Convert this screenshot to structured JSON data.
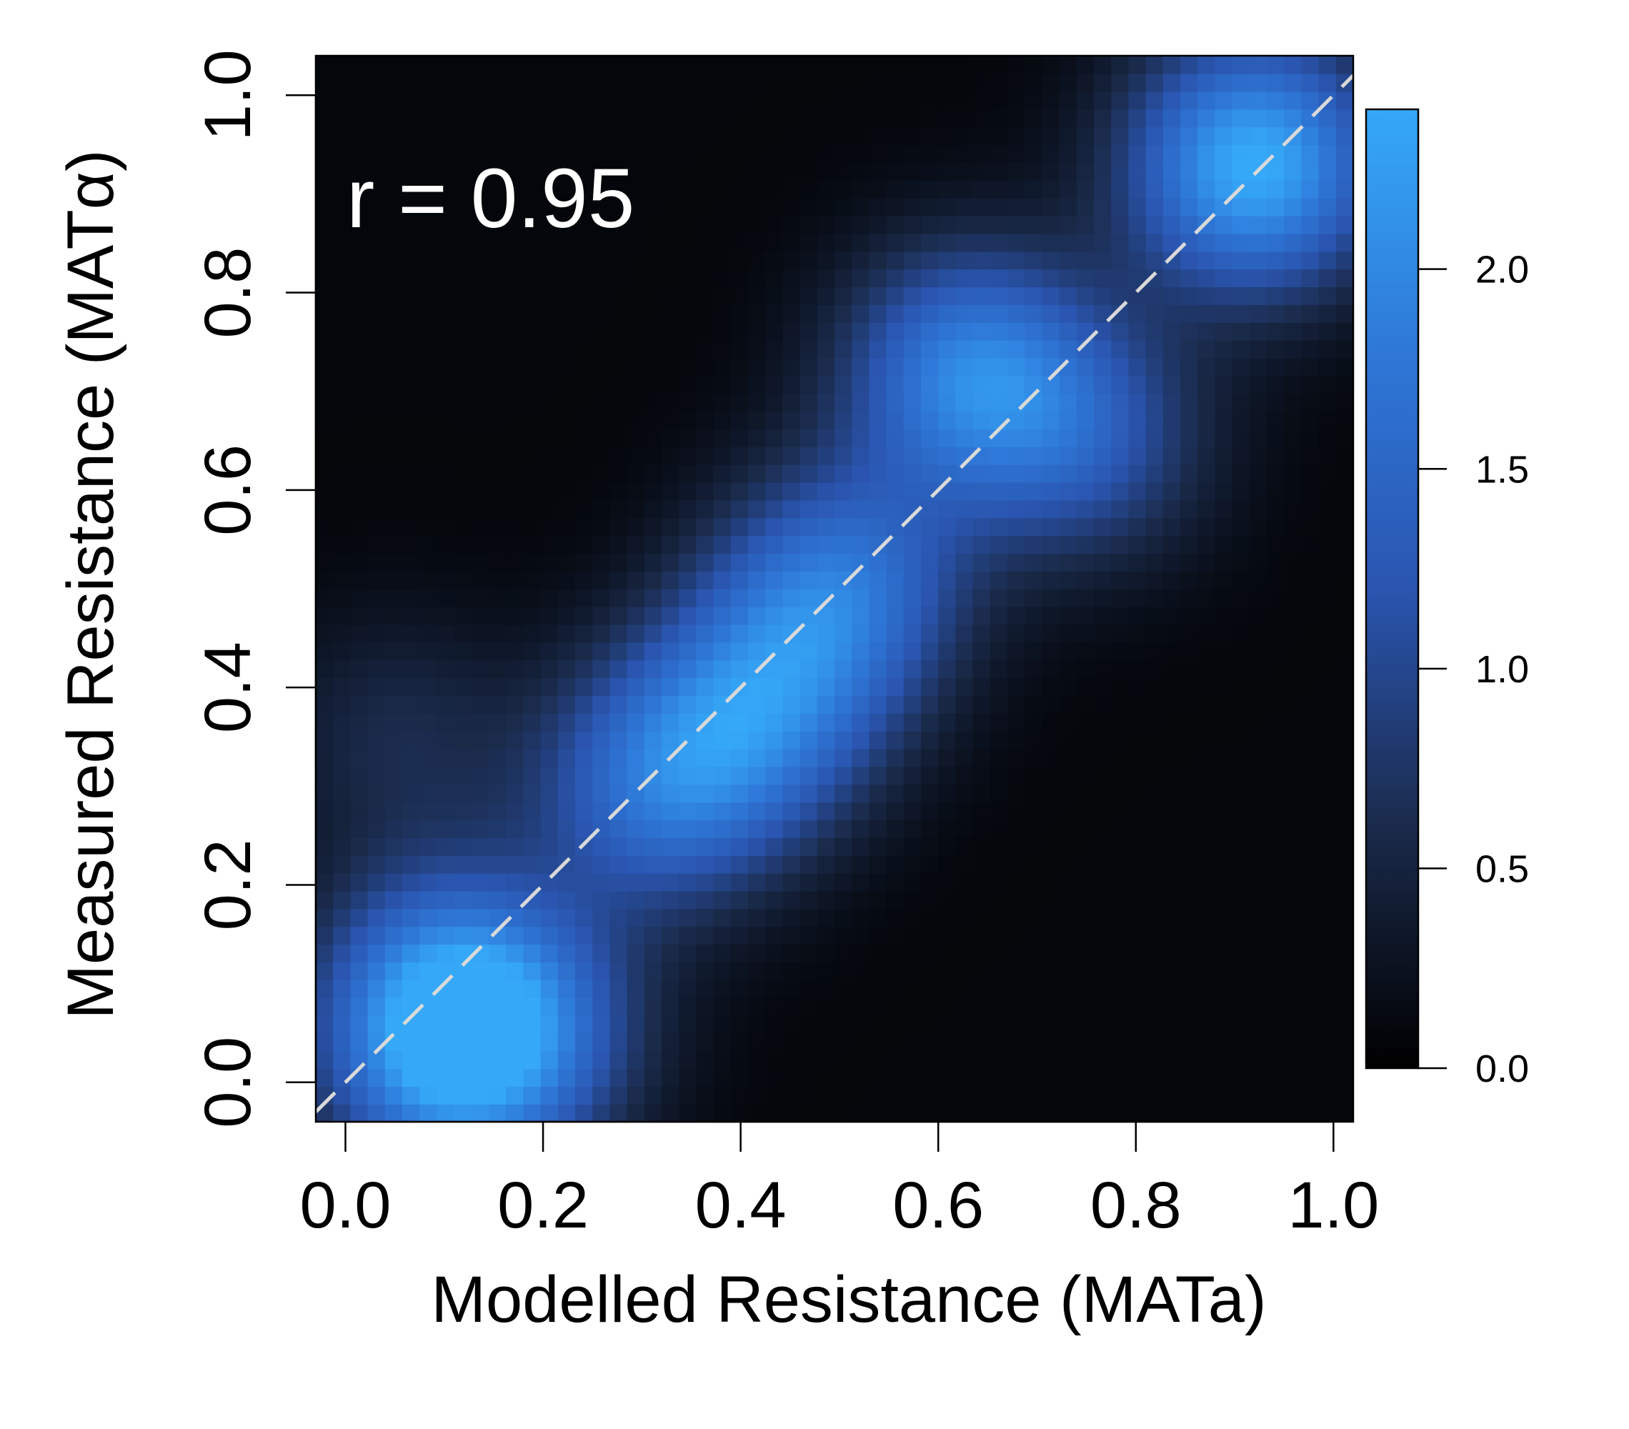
{
  "chart_data": {
    "type": "heatmap",
    "title": "",
    "xlabel": "Modelled Resistance (MATa)",
    "ylabel": "Measured Resistance (MATα)",
    "xlim": [
      -0.03,
      1.02
    ],
    "ylim": [
      -0.04,
      1.04
    ],
    "x_ticks": [
      "0.0",
      "0.2",
      "0.4",
      "0.6",
      "0.8",
      "1.0"
    ],
    "y_ticks": [
      "0.0",
      "0.2",
      "0.4",
      "0.6",
      "0.8",
      "1.0"
    ],
    "x_tick_values": [
      0.0,
      0.2,
      0.4,
      0.6,
      0.8,
      1.0
    ],
    "y_tick_values": [
      0.0,
      0.2,
      0.4,
      0.6,
      0.8,
      1.0
    ],
    "annotation": "r = 0.95",
    "identity_line": {
      "from": [
        -0.03,
        -0.03
      ],
      "to": [
        1.02,
        1.02
      ],
      "style": "dashed",
      "color": "#d9d9d9"
    },
    "grid": false,
    "colorbar": {
      "placement": "right",
      "range": [
        0.0,
        2.4
      ],
      "ticks": [
        "0.0",
        "0.5",
        "1.0",
        "1.5",
        "2.0"
      ],
      "tick_values": [
        0.0,
        0.5,
        1.0,
        1.5,
        2.0
      ],
      "colors": [
        "#000000",
        "#1a2a4a",
        "#2a55b0",
        "#2e78d8",
        "#35a8f8"
      ]
    },
    "density_peaks": [
      {
        "x": 0.92,
        "y": 0.93,
        "value": 2.35
      },
      {
        "x": 0.63,
        "y": 0.72,
        "value": 1.7
      },
      {
        "x": 0.5,
        "y": 0.5,
        "value": 1.5
      },
      {
        "x": 0.42,
        "y": 0.38,
        "value": 1.35
      },
      {
        "x": 0.32,
        "y": 0.3,
        "value": 1.45
      },
      {
        "x": 0.1,
        "y": 0.02,
        "value": 1.4
      },
      {
        "x": 0.1,
        "y": 0.1,
        "value": 1.2
      },
      {
        "x": 0.18,
        "y": 0.05,
        "value": 1.0
      },
      {
        "x": 0.75,
        "y": 0.65,
        "value": 1.0
      },
      {
        "x": 0.05,
        "y": 0.35,
        "value": 0.5
      }
    ]
  }
}
